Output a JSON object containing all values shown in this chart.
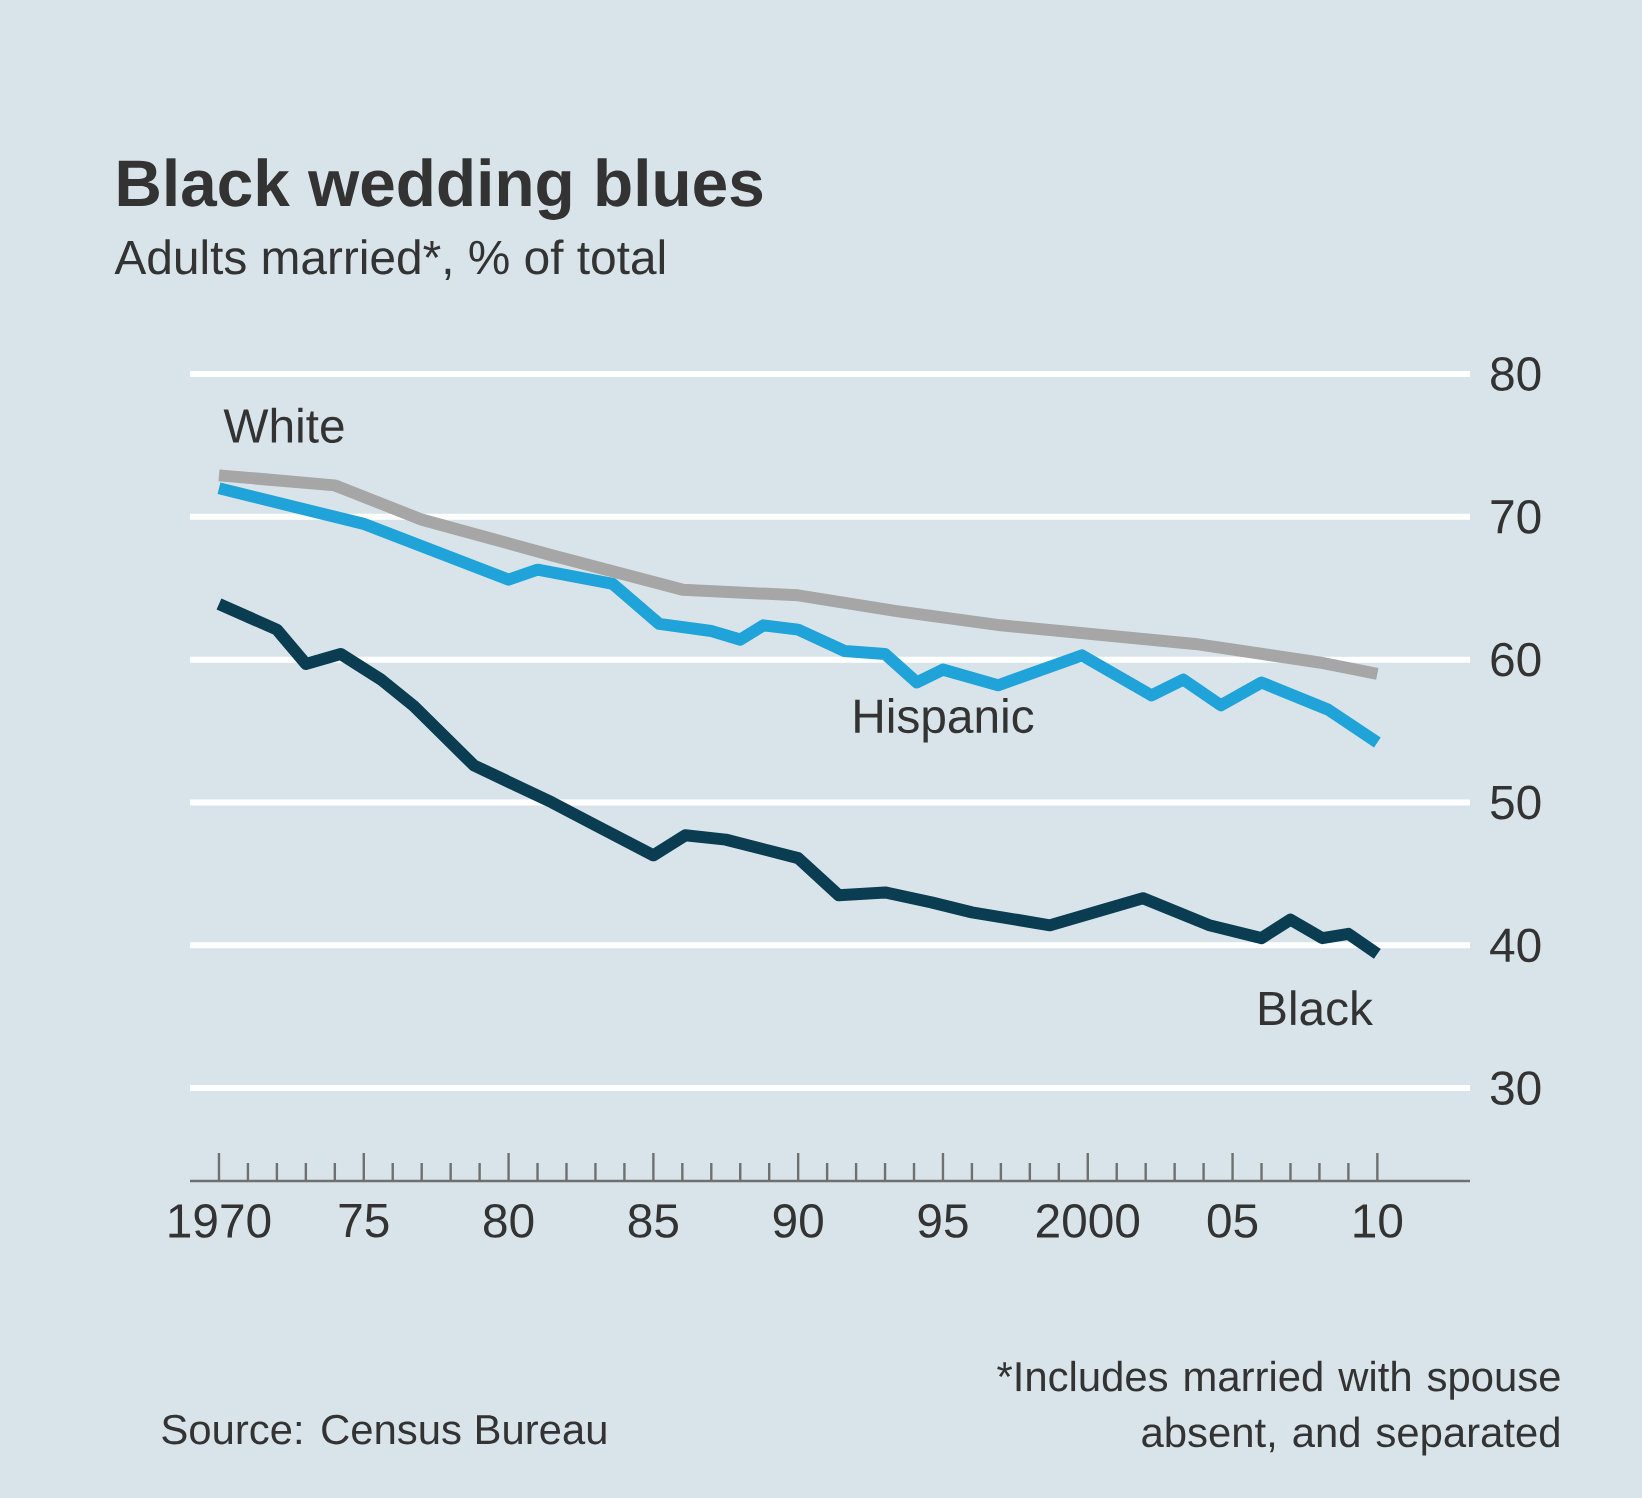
{
  "chart_data": {
    "type": "line",
    "title": "Black wedding blues",
    "subtitle": "Adults married*, % of total",
    "annotations": [
      "Source: Census Bureau",
      "*Includes married with spouse absent, and separated"
    ],
    "series": [
      {
        "name": "White",
        "color": "#a6a6a6",
        "x": [
          1970,
          1974,
          1977,
          1981.5,
          1986,
          1990,
          1993.4,
          1997,
          2003.7,
          2008,
          2010
        ],
        "values": [
          72.9,
          72.2,
          69.8,
          67.3,
          64.9,
          64.5,
          63.4,
          62.4,
          61.1,
          59.8,
          59.0
        ]
      },
      {
        "name": "Hispanic",
        "color": "#1fa3d8",
        "x": [
          1970,
          1975,
          1980,
          1981,
          1983.6,
          1985.2,
          1987,
          1988,
          1988.8,
          1990,
          1991.6,
          1993,
          1994.1,
          1995,
          1996.9,
          1999.8,
          2002.2,
          2003.3,
          2004.6,
          2006,
          2008.3,
          2010
        ],
        "values": [
          72,
          69.5,
          65.6,
          66.3,
          65.3,
          62.5,
          62,
          61.4,
          62.4,
          62.1,
          60.6,
          60.4,
          58.4,
          59.3,
          58.2,
          60.3,
          57.5,
          58.6,
          56.8,
          58.4,
          56.5,
          54.2
        ]
      },
      {
        "name": "Black",
        "color": "#0b3d52",
        "x": [
          1970,
          1972,
          1973,
          1974.2,
          1975.6,
          1976.7,
          1978.8,
          1981.5,
          1983,
          1985,
          1986.1,
          1987.5,
          1990,
          1991.4,
          1993,
          1994.6,
          1996,
          1998.7,
          2001.9,
          2004.2,
          2006,
          2007,
          2008.1,
          2009,
          2010
        ],
        "values": [
          63.9,
          62.1,
          59.7,
          60.4,
          58.6,
          56.8,
          52.6,
          50,
          48.4,
          46.3,
          47.7,
          47.4,
          46.1,
          43.5,
          43.7,
          43,
          42.3,
          41.4,
          43.3,
          41.4,
          40.5,
          41.8,
          40.5,
          40.8,
          39.4
        ]
      }
    ],
    "xlim": [
      1969,
      2013.2
    ],
    "ylim": [
      23.5,
      80
    ],
    "xticks": [
      {
        "value": 1970,
        "label": "1970"
      },
      {
        "value": 1971,
        "label": null
      },
      {
        "value": 1972,
        "label": null
      },
      {
        "value": 1973,
        "label": null
      },
      {
        "value": 1974,
        "label": null
      },
      {
        "value": 1975,
        "label": "75"
      },
      {
        "value": 1976,
        "label": null
      },
      {
        "value": 1977,
        "label": null
      },
      {
        "value": 1978,
        "label": null
      },
      {
        "value": 1979,
        "label": null
      },
      {
        "value": 1980,
        "label": "80"
      },
      {
        "value": 1981,
        "label": null
      },
      {
        "value": 1982,
        "label": null
      },
      {
        "value": 1983,
        "label": null
      },
      {
        "value": 1984,
        "label": null
      },
      {
        "value": 1985,
        "label": "85"
      },
      {
        "value": 1986,
        "label": null
      },
      {
        "value": 1987,
        "label": null
      },
      {
        "value": 1988,
        "label": null
      },
      {
        "value": 1989,
        "label": null
      },
      {
        "value": 1990,
        "label": "90"
      },
      {
        "value": 1991,
        "label": null
      },
      {
        "value": 1992,
        "label": null
      },
      {
        "value": 1993,
        "label": null
      },
      {
        "value": 1994,
        "label": null
      },
      {
        "value": 1995,
        "label": "95"
      },
      {
        "value": 1996,
        "label": null
      },
      {
        "value": 1997,
        "label": null
      },
      {
        "value": 1998,
        "label": null
      },
      {
        "value": 1999,
        "label": null
      },
      {
        "value": 2000,
        "label": "2000"
      },
      {
        "value": 2001,
        "label": null
      },
      {
        "value": 2002,
        "label": null
      },
      {
        "value": 2003,
        "label": null
      },
      {
        "value": 2004,
        "label": null
      },
      {
        "value": 2005,
        "label": "05"
      },
      {
        "value": 2006,
        "label": null
      },
      {
        "value": 2007,
        "label": null
      },
      {
        "value": 2008,
        "label": null
      },
      {
        "value": 2009,
        "label": null
      },
      {
        "value": 2010,
        "label": "10"
      }
    ],
    "yticks": [
      30,
      40,
      50,
      60,
      70,
      80
    ],
    "grid": "y",
    "marker": "none",
    "line_style": "solid"
  }
}
